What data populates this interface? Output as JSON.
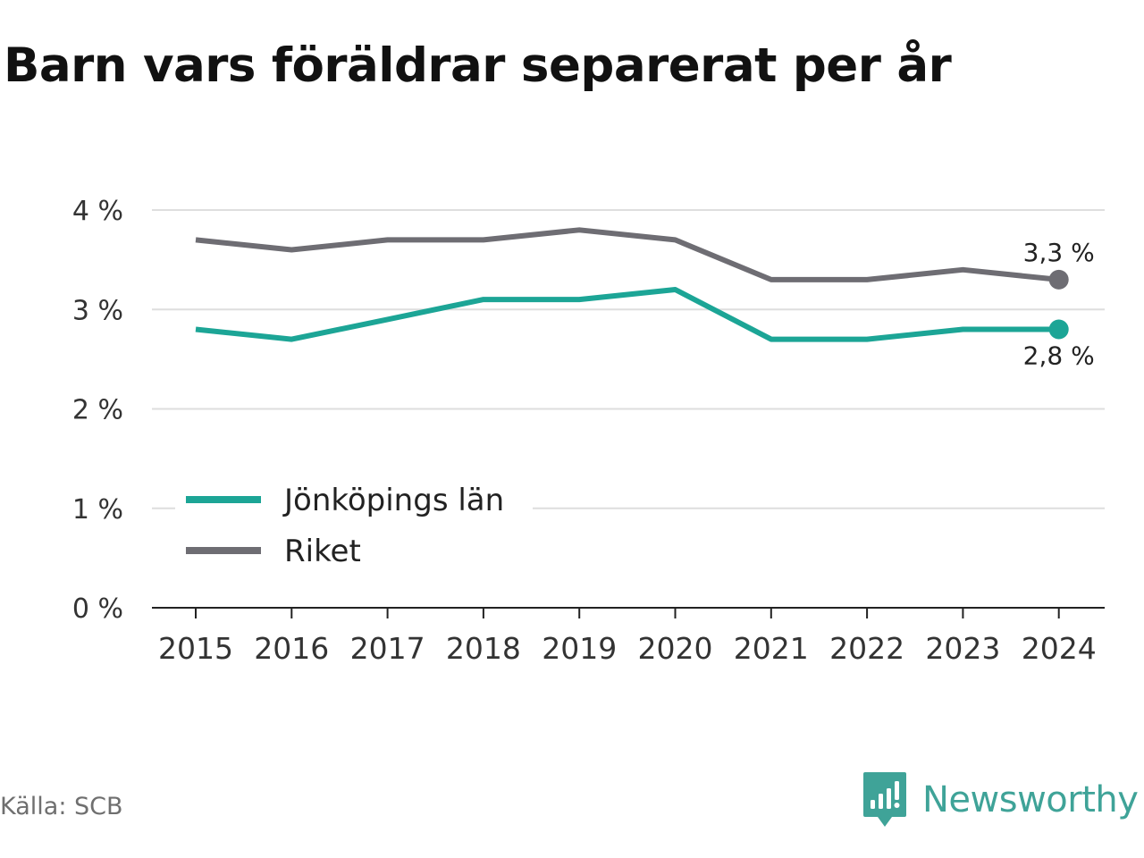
{
  "title": "Barn vars föräldrar separerat per år",
  "source": "Källa: SCB",
  "brand": {
    "name": "Newsworthy",
    "icon": "newsworthy-logo-icon",
    "color": "#3fa398"
  },
  "chart_data": {
    "type": "line",
    "title": "Barn vars föräldrar separerat per år",
    "xlabel": "",
    "ylabel": "",
    "x": [
      2015,
      2016,
      2017,
      2018,
      2019,
      2020,
      2021,
      2022,
      2023,
      2024
    ],
    "ylim": [
      0,
      4
    ],
    "yticks": [
      0,
      1,
      2,
      3,
      4
    ],
    "ytick_labels": [
      "0 %",
      "1 %",
      "2 %",
      "3 %",
      "4 %"
    ],
    "grid": "horizontal",
    "legend": "lower-left",
    "series": [
      {
        "name": "Jönköpings län",
        "color": "#1ca596",
        "values": [
          2.8,
          2.7,
          2.9,
          3.1,
          3.1,
          3.2,
          2.7,
          2.7,
          2.8,
          2.8
        ],
        "end_label": "2,8 %"
      },
      {
        "name": "Riket",
        "color": "#6e6d73",
        "values": [
          3.7,
          3.6,
          3.7,
          3.7,
          3.8,
          3.7,
          3.3,
          3.3,
          3.4,
          3.3
        ],
        "end_label": "3,3 %"
      }
    ]
  }
}
